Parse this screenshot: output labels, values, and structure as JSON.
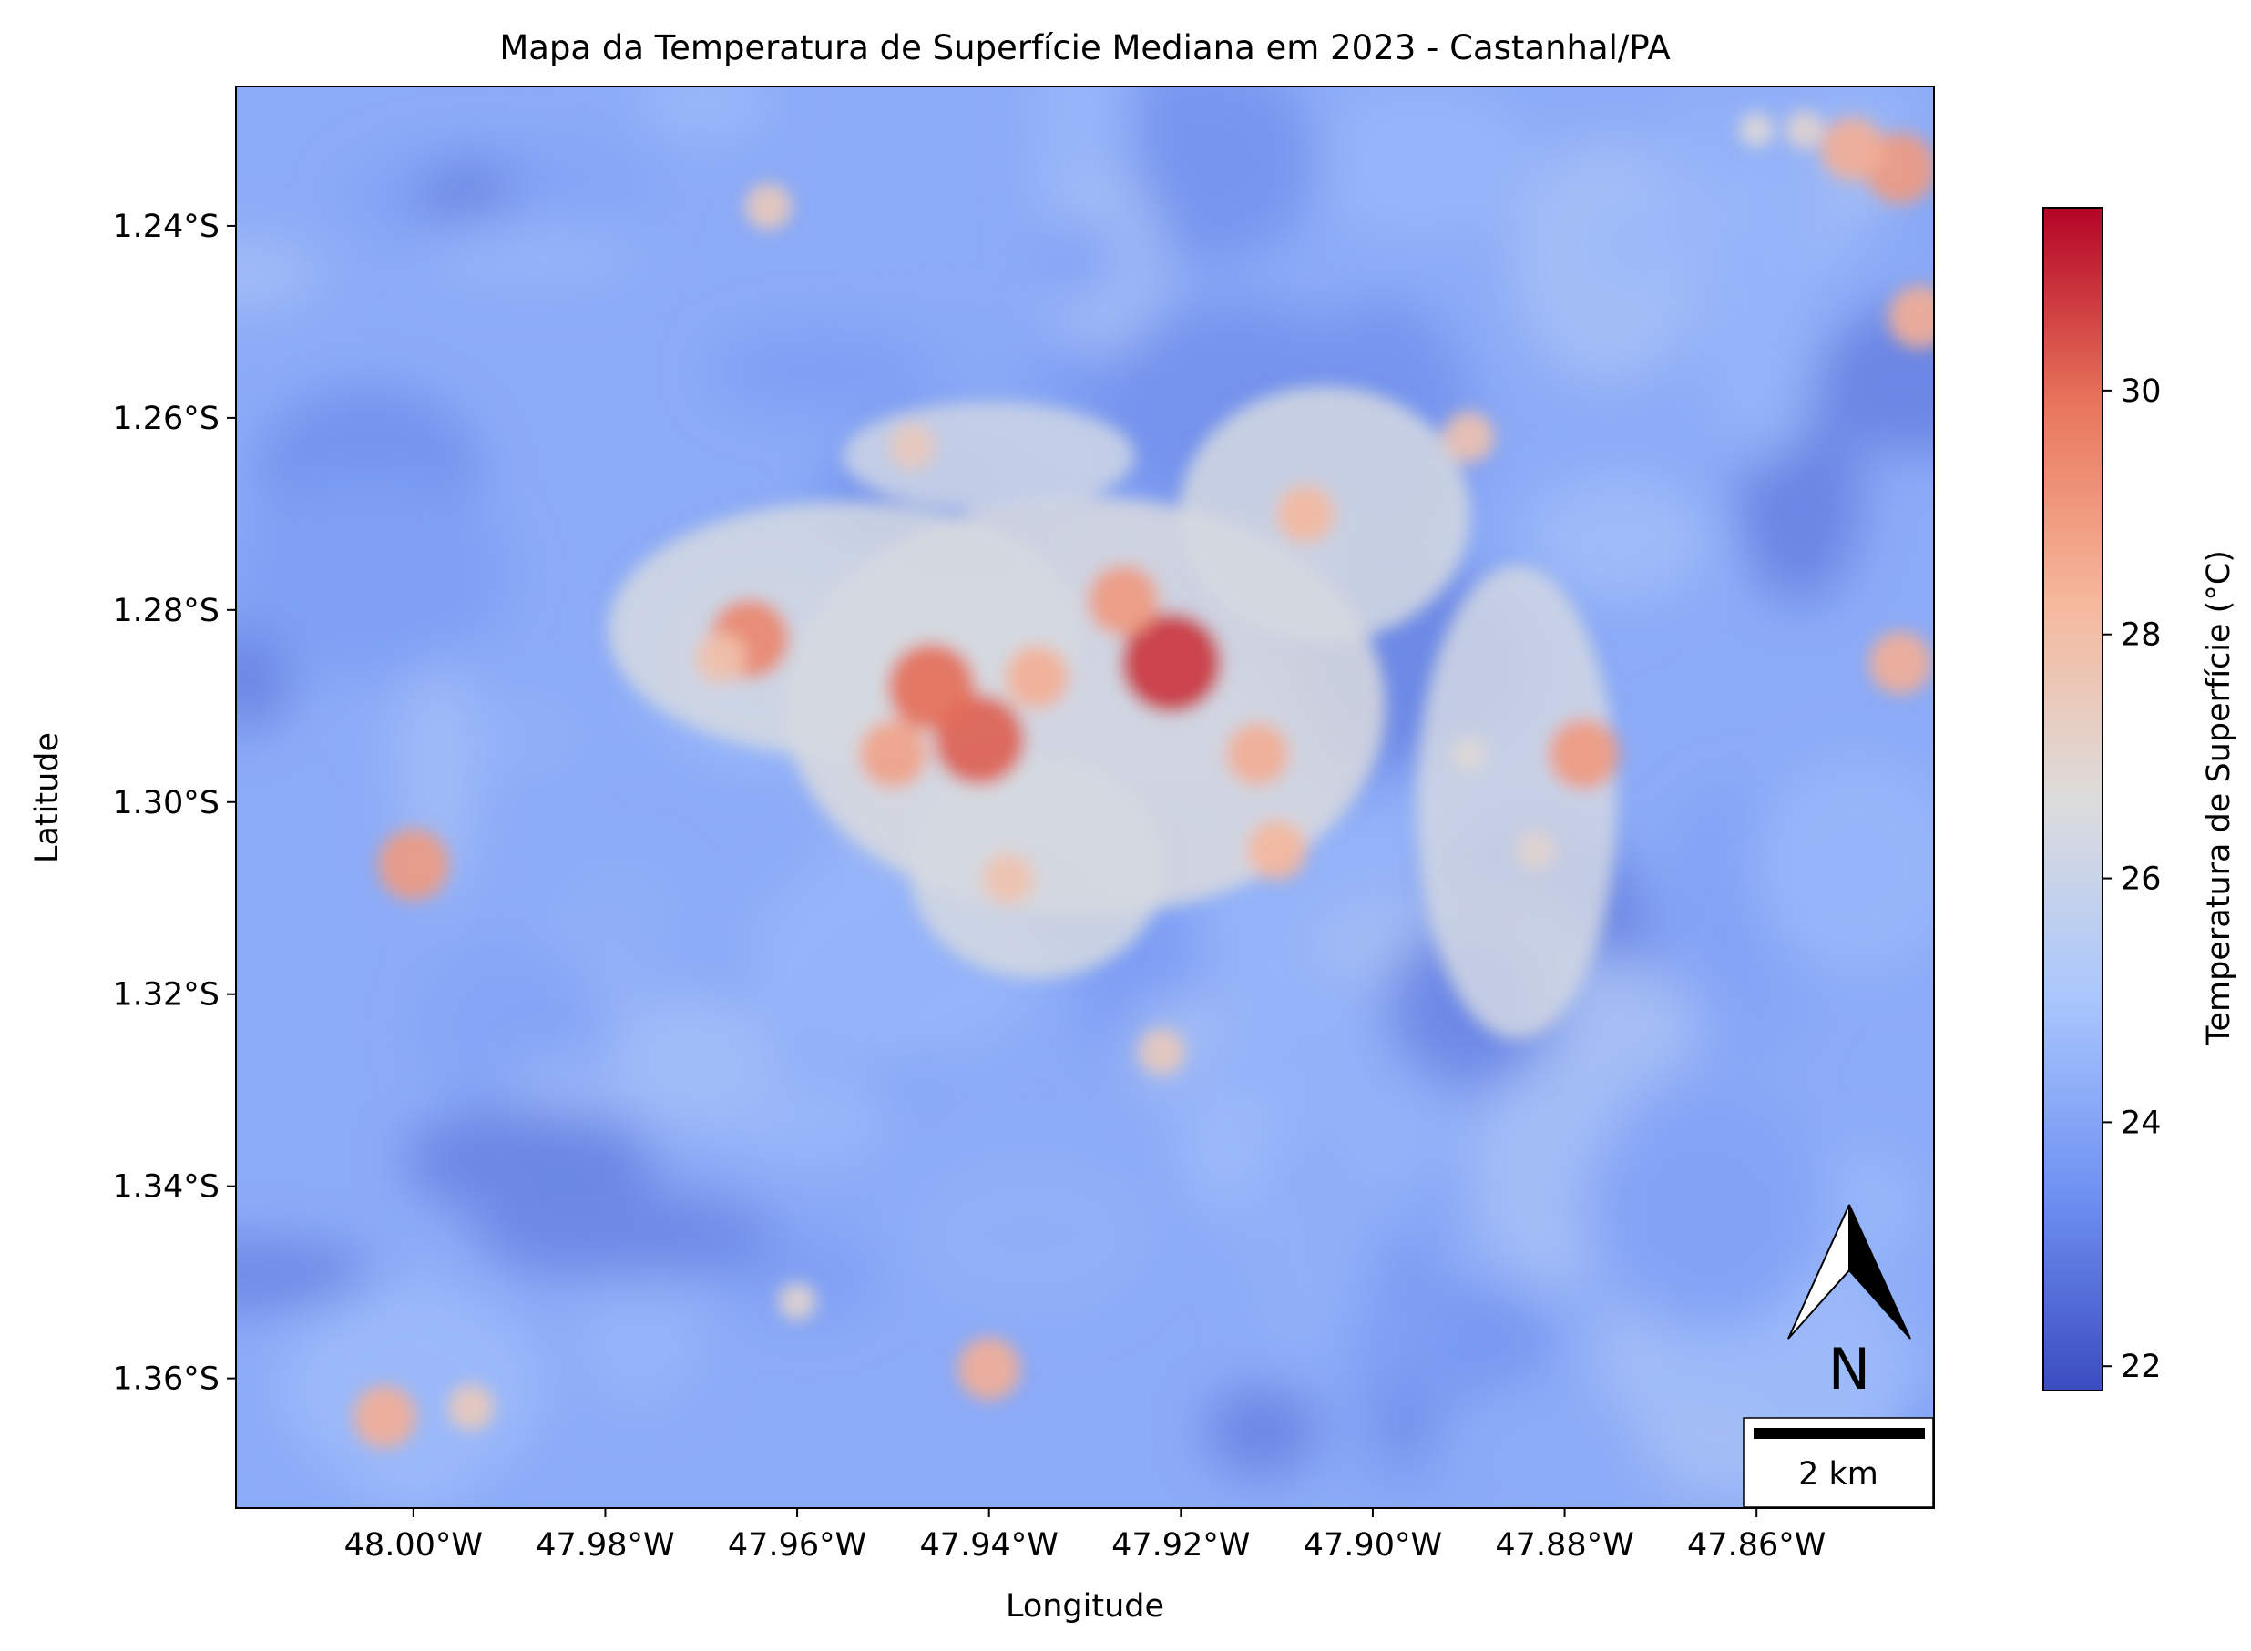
{
  "title": "Mapa da Temperatura de Superfície Mediana em 2023 - Castanhal/PA",
  "xlabel": "Longitude",
  "ylabel": "Latitude",
  "x_ticks": [
    "48.00°W",
    "47.98°W",
    "47.96°W",
    "47.94°W",
    "47.92°W",
    "47.90°W",
    "47.88°W",
    "47.86°W"
  ],
  "y_ticks": [
    "1.24°S",
    "1.26°S",
    "1.28°S",
    "1.30°S",
    "1.32°S",
    "1.34°S",
    "1.36°S"
  ],
  "colorbar": {
    "label": "Temperatura de Superfície (°C)",
    "ticks": [
      "22",
      "24",
      "26",
      "28",
      "30"
    ],
    "colormap": "coolwarm",
    "colors": [
      "#3b4cc0",
      "#6f91f2",
      "#aac7fd",
      "#dddcdc",
      "#f6b89c",
      "#e8765c",
      "#b40426"
    ]
  },
  "north_arrow": {
    "label": "N"
  },
  "scale_bar": {
    "label": "2 km"
  },
  "chart_data": {
    "type": "heatmap",
    "title": "Mapa da Temperatura de Superfície Mediana em 2023 - Castanhal/PA",
    "xlabel": "Longitude",
    "ylabel": "Latitude",
    "xlim": [
      -48.0185,
      -47.8415
    ],
    "ylim": [
      -1.3735,
      -1.2255
    ],
    "x_tick_values": [
      -48.0,
      -47.98,
      -47.96,
      -47.94,
      -47.92,
      -47.9,
      -47.88,
      -47.86
    ],
    "y_tick_values": [
      -1.24,
      -1.26,
      -1.28,
      -1.3,
      -1.32,
      -1.34,
      -1.36
    ],
    "value_range": [
      21.8,
      31.5
    ],
    "colorbar_tick_values": [
      22,
      24,
      26,
      28,
      30
    ],
    "background_value": 24.2,
    "hotspots": [
      {
        "lon": -47.921,
        "lat": -1.2855,
        "value": 30.8
      },
      {
        "lon": -47.941,
        "lat": -1.2935,
        "value": 30.2
      },
      {
        "lon": -47.946,
        "lat": -1.288,
        "value": 30.0
      },
      {
        "lon": -47.965,
        "lat": -1.283,
        "value": 29.5
      },
      {
        "lon": -47.926,
        "lat": -1.279,
        "value": 29.0
      },
      {
        "lon": -47.95,
        "lat": -1.295,
        "value": 28.8
      },
      {
        "lon": -47.935,
        "lat": -1.287,
        "value": 28.5
      },
      {
        "lon": -47.912,
        "lat": -1.295,
        "value": 28.5
      },
      {
        "lon": -47.91,
        "lat": -1.305,
        "value": 28.3
      },
      {
        "lon": -47.938,
        "lat": -1.308,
        "value": 27.8
      },
      {
        "lon": -47.907,
        "lat": -1.27,
        "value": 28.2
      },
      {
        "lon": -47.89,
        "lat": -1.262,
        "value": 27.8
      },
      {
        "lon": -47.948,
        "lat": -1.263,
        "value": 27.5
      },
      {
        "lon": -47.968,
        "lat": -1.285,
        "value": 27.8
      },
      {
        "lon": -48.0,
        "lat": -1.3065,
        "value": 29.0
      },
      {
        "lon": -47.883,
        "lat": -1.305,
        "value": 27.0
      },
      {
        "lon": -47.89,
        "lat": -1.295,
        "value": 26.8
      },
      {
        "lon": -47.94,
        "lat": -1.359,
        "value": 28.5
      },
      {
        "lon": -47.845,
        "lat": -1.234,
        "value": 29.0
      },
      {
        "lon": -47.85,
        "lat": -1.232,
        "value": 28.5
      },
      {
        "lon": -47.843,
        "lat": -1.2495,
        "value": 28.5
      },
      {
        "lon": -47.845,
        "lat": -1.2855,
        "value": 28.5
      },
      {
        "lon": -47.878,
        "lat": -1.295,
        "value": 29.0
      },
      {
        "lon": -47.922,
        "lat": -1.326,
        "value": 27.5
      },
      {
        "lon": -47.963,
        "lat": -1.238,
        "value": 27.5
      },
      {
        "lon": -48.003,
        "lat": -1.364,
        "value": 28.5
      },
      {
        "lon": -47.994,
        "lat": -1.363,
        "value": 27.5
      },
      {
        "lon": -47.96,
        "lat": -1.352,
        "value": 27.0
      },
      {
        "lon": -47.855,
        "lat": -1.23,
        "value": 27.0
      },
      {
        "lon": -47.86,
        "lat": -1.23,
        "value": 26.8
      }
    ]
  }
}
